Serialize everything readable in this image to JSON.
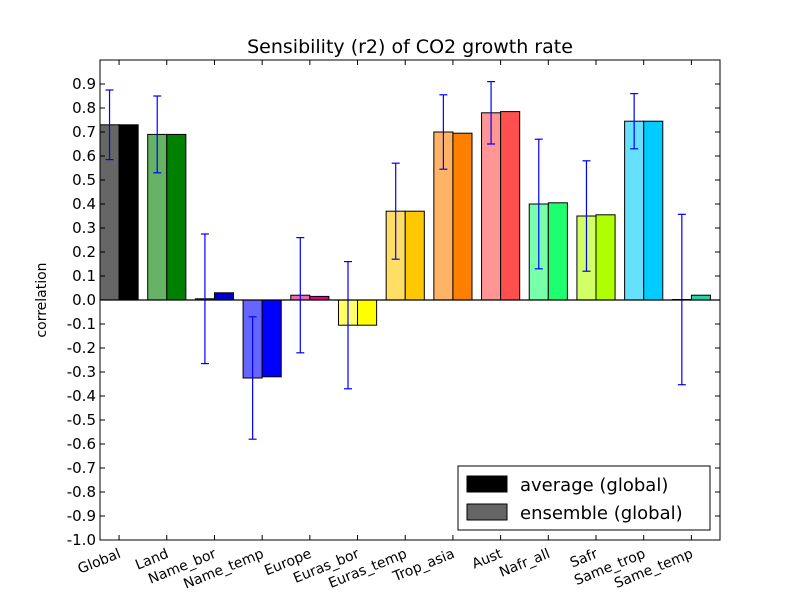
{
  "chart_data": {
    "type": "bar",
    "title": "Sensibility (r2) of CO2 growth rate",
    "xlabel": "",
    "ylabel": "correlation",
    "ylim": [
      -1.0,
      1.0
    ],
    "yticks": [
      "-1.0",
      "-0.9",
      "-0.8",
      "-0.7",
      "-0.6",
      "-0.5",
      "-0.4",
      "-0.3",
      "-0.2",
      "-0.1",
      "0.0",
      "0.1",
      "0.2",
      "0.3",
      "0.4",
      "0.5",
      "0.6",
      "0.7",
      "0.8",
      "0.9"
    ],
    "categories": [
      "Global",
      "Land",
      "Name_bor",
      "Name_temp",
      "Europe",
      "Euras_bor",
      "Euras_temp",
      "Trop_asia",
      "Aust",
      "Nafr_all",
      "Safr",
      "Same_trop",
      "Same_temp"
    ],
    "colors": [
      "#000000",
      "#008000",
      "#0000cd",
      "#0000ff",
      "#e6007e",
      "#ffff00",
      "#ffc800",
      "#ff8000",
      "#ff4f4f",
      "#1eff70",
      "#b0ff00",
      "#00ccff",
      "#20d4a8"
    ],
    "legend": {
      "placement": "lower-right",
      "entries": [
        "average (global)",
        "ensemble (global)"
      ],
      "colors": [
        "#000000",
        "#666666"
      ]
    },
    "series": [
      {
        "name": "ensemble (global)",
        "values": [
          0.73,
          0.69,
          0.005,
          -0.325,
          0.02,
          -0.105,
          0.37,
          0.7,
          0.78,
          0.4,
          0.35,
          0.745,
          0.002
        ],
        "error": [
          0.145,
          0.16,
          0.27,
          0.255,
          0.24,
          0.265,
          0.2,
          0.155,
          0.13,
          0.27,
          0.23,
          0.115,
          0.355
        ],
        "opacity": 0.6
      },
      {
        "name": "average (global)",
        "values": [
          0.73,
          0.69,
          0.03,
          -0.32,
          0.015,
          -0.105,
          0.37,
          0.695,
          0.785,
          0.405,
          0.355,
          0.745,
          0.02
        ]
      }
    ]
  }
}
